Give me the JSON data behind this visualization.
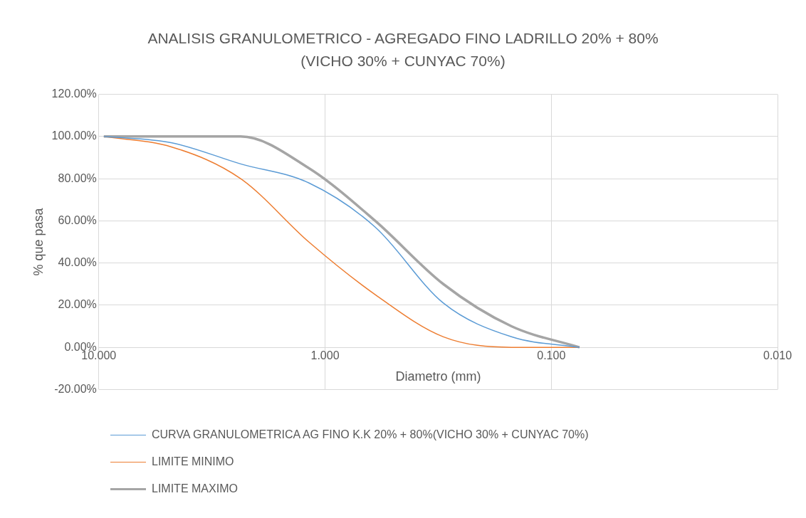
{
  "chart_data": {
    "type": "line",
    "title": "ANALISIS GRANULOMETRICO - AGREGADO FINO LADRILLO 20% + 80%(VICHO 30% + CUNYAC 70%)",
    "xlabel": "Diametro (mm)",
    "ylabel": "% que pasa",
    "x": [
      9.5,
      4.75,
      2.36,
      1.18,
      0.6,
      0.3,
      0.15,
      0.075
    ],
    "series": [
      {
        "name": "CURVA GRANULOMETRICA AG FINO K.K 20% + 80%(VICHO 30% + CUNYAC 70%)",
        "color": "#5b9bd5",
        "values": [
          100,
          97,
          87,
          78,
          57,
          21,
          5,
          0
        ]
      },
      {
        "name": "LIMITE MINIMO",
        "color": "#ed7d31",
        "values": [
          100,
          95,
          80,
          50,
          25,
          5,
          0,
          0
        ]
      },
      {
        "name": "LIMITE MAXIMO",
        "color": "#a5a5a5",
        "values": [
          100,
          100,
          100,
          85,
          60,
          30,
          10,
          0
        ]
      }
    ],
    "log": "x",
    "xlim": [
      10,
      0.01
    ],
    "xticks": [
      {
        "value": 10,
        "label": "10.000"
      },
      {
        "value": 1,
        "label": "1.000"
      },
      {
        "value": 0.1,
        "label": "0.100"
      },
      {
        "value": 0.01,
        "label": "0.010"
      }
    ],
    "ylim": [
      -20,
      120
    ],
    "yticks": [
      {
        "value": -20,
        "label": "-20.00%"
      },
      {
        "value": 0,
        "label": "0.00%"
      },
      {
        "value": 20,
        "label": "20.00%"
      },
      {
        "value": 40,
        "label": "40.00%"
      },
      {
        "value": 60,
        "label": "60.00%"
      },
      {
        "value": 80,
        "label": "80.00%"
      },
      {
        "value": 100,
        "label": "100.00%"
      },
      {
        "value": 120,
        "label": "120.00%"
      }
    ],
    "grid": true,
    "legend": "bottom",
    "marker": "none",
    "line_style": "solid"
  }
}
